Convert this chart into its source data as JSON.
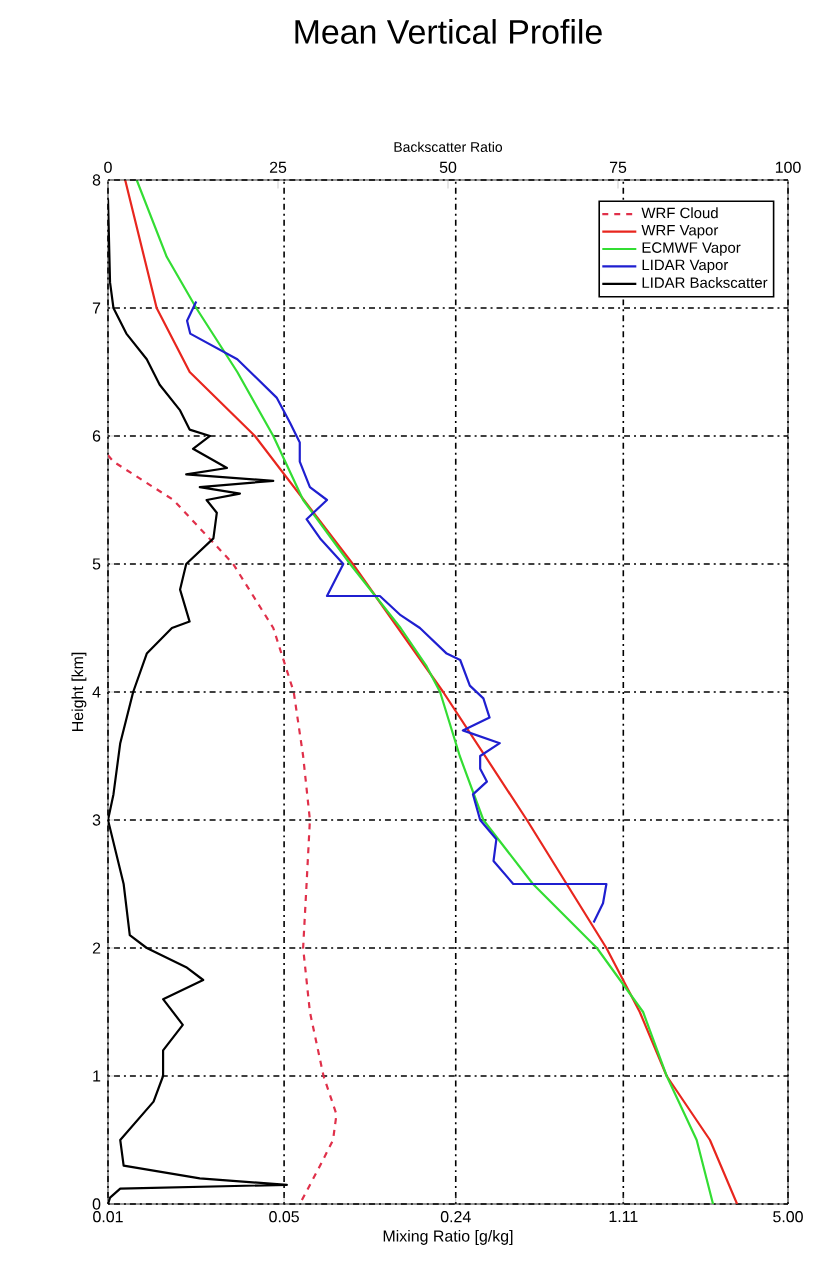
{
  "chart_data": {
    "type": "line",
    "title": "Mean Vertical Profile",
    "xlabel": "Mixing Ratio [g/kg]",
    "x2label": "Backscatter Ratio",
    "ylabel": "Height [km]",
    "log": "x",
    "xlim": [
      0.01,
      5
    ],
    "xticks": [
      0.01,
      0.05,
      0.24,
      1.11,
      {
        "value": 5,
        "label": "5.00"
      }
    ],
    "x2lim": [
      0,
      100
    ],
    "x2ticks": [
      0,
      25,
      50,
      75,
      100
    ],
    "ylim": [
      0,
      8
    ],
    "yticks": [
      0,
      1,
      2,
      3,
      4,
      5,
      6,
      7,
      8
    ],
    "grid": true,
    "legend": "top right",
    "series": [
      {
        "name": "WRF Cloud",
        "color": "#e0304a",
        "line_style": "dashed",
        "x": [
          0.01,
          0.0105,
          0.0182,
          0.0314,
          0.0453,
          0.0546,
          0.0595,
          0.0633,
          0.0614,
          0.0595,
          0.0633,
          0.0717,
          0.0807,
          0.0782,
          0.0695,
          0.0614,
          0.0577
        ],
        "values": [
          5.85,
          5.8,
          5.5,
          5.0,
          4.5,
          4.0,
          3.5,
          3.0,
          2.5,
          2.0,
          1.5,
          1.0,
          0.7,
          0.5,
          0.3,
          0.1,
          0.0
        ]
      },
      {
        "name": "WRF Vapor",
        "color": "#e8261e",
        "x": [
          0.0117,
          0.0156,
          0.0211,
          0.0383,
          0.0937,
          0.214,
          0.46,
          0.951,
          1.29,
          1.65,
          2.45,
          3.14
        ],
        "values": [
          8,
          7,
          6.5,
          6,
          5,
          4,
          3,
          2,
          1.5,
          1,
          0.5,
          0
        ]
      },
      {
        "name": "ECMWF Vapor",
        "color": "#33dd33",
        "x": [
          0.013,
          0.0171,
          0.0224,
          0.0326,
          0.0453,
          0.0595,
          0.0914,
          0.145,
          0.184,
          0.208,
          0.249,
          0.309,
          0.486,
          0.872,
          1.33,
          1.65,
          2.17,
          2.52
        ],
        "values": [
          8,
          7.4,
          7,
          6.5,
          6,
          5.5,
          5,
          4.5,
          4.2,
          4,
          3.5,
          3,
          2.5,
          2,
          1.5,
          1,
          0.5,
          0
        ]
      },
      {
        "name": "LIDAR Vapor",
        "color": "#1f1fd0",
        "x": [
          0.0224,
          0.0206,
          0.0212,
          0.0326,
          0.0467,
          0.0529,
          0.0577,
          0.0577,
          0.0633,
          0.074,
          0.0614,
          0.0695,
          0.0859,
          0.074,
          0.12,
          0.145,
          0.173,
          0.221,
          0.25,
          0.273,
          0.309,
          0.327,
          0.256,
          0.359,
          0.3,
          0.3,
          0.319,
          0.281,
          0.3,
          0.348,
          0.339,
          0.406,
          0.951,
          0.922,
          0.846
        ],
        "values": [
          7.05,
          6.9,
          6.8,
          6.6,
          6.3,
          6.1,
          5.95,
          5.8,
          5.6,
          5.5,
          5.35,
          5.2,
          5.0,
          4.75,
          4.75,
          4.6,
          4.5,
          4.3,
          4.25,
          4.05,
          3.95,
          3.8,
          3.7,
          3.6,
          3.5,
          3.4,
          3.3,
          3.2,
          3.0,
          2.85,
          2.68,
          2.5,
          2.5,
          2.35,
          2.2
        ]
      },
      {
        "name": "LIDAR Backscatter",
        "color": "#000000",
        "axis": "x2",
        "x": [
          0,
          0.3,
          0.8,
          2.7,
          5.7,
          7.6,
          10.6,
          12,
          15,
          12.5,
          17.5,
          11.5,
          24.3,
          13.5,
          19.4,
          14.5,
          16,
          15.5,
          11.5,
          10.6,
          12,
          9.4,
          5.7,
          3.7,
          1.8,
          0.8,
          0,
          2.3,
          3.2,
          5.7,
          11.5,
          14,
          8.1,
          11,
          8.1,
          8.1,
          6.7,
          1.8,
          2.3,
          13.5,
          26.3,
          1.8,
          0.3,
          0
        ],
        "values": [
          7.85,
          7.2,
          7.0,
          6.8,
          6.6,
          6.4,
          6.2,
          6.05,
          6.0,
          5.9,
          5.75,
          5.7,
          5.65,
          5.6,
          5.55,
          5.5,
          5.4,
          5.2,
          5.0,
          4.8,
          4.55,
          4.5,
          4.3,
          4.0,
          3.6,
          3.2,
          3.0,
          2.5,
          2.1,
          2.0,
          1.85,
          1.75,
          1.6,
          1.4,
          1.2,
          1.0,
          0.8,
          0.5,
          0.3,
          0.2,
          0.15,
          0.12,
          0.05,
          0
        ]
      }
    ]
  }
}
